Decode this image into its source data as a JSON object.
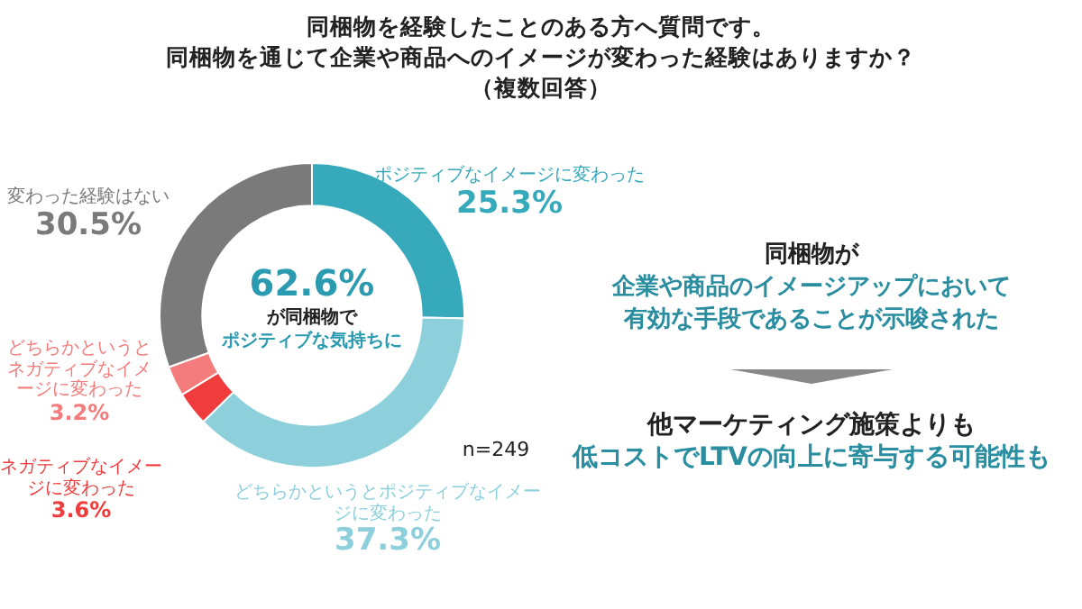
{
  "chart_data": {
    "type": "donut",
    "title": "同梱物を経験したことのある方へ質問です。",
    "subtitle": "同梱物を通じて企業や商品へのイメージが変わった経験はありますか？",
    "categories": [
      "ポジティブなイメージに変わった",
      "どちらかというとポジティブなイメージに変わった",
      "ネガティブなイメージに変わった",
      "どちらかというとネガティブなイメージに変わった",
      "変わった経験はない"
    ],
    "values": [
      25.3,
      37.3,
      3.6,
      3.2,
      30.5
    ],
    "colors": [
      "#36a9ba",
      "#8dd0dc",
      "#f03c3c",
      "#f47c7c",
      "#7a7a7a"
    ],
    "value_labels": [
      "25.3%",
      "37.3%",
      "3.6%",
      "3.2%",
      "30.5%"
    ],
    "legend": false,
    "annotations": [
      "（複数回答）",
      "62.6%",
      "が同梱物で",
      "ポジティブな気持ちに",
      "n=249",
      "同梱物が",
      "企業や商品のイメージアップにおいて",
      "有効な手段であることが示唆された",
      "他マーケティング施策よりも",
      "低コストでLTVの向上に寄与する可能性も"
    ]
  }
}
